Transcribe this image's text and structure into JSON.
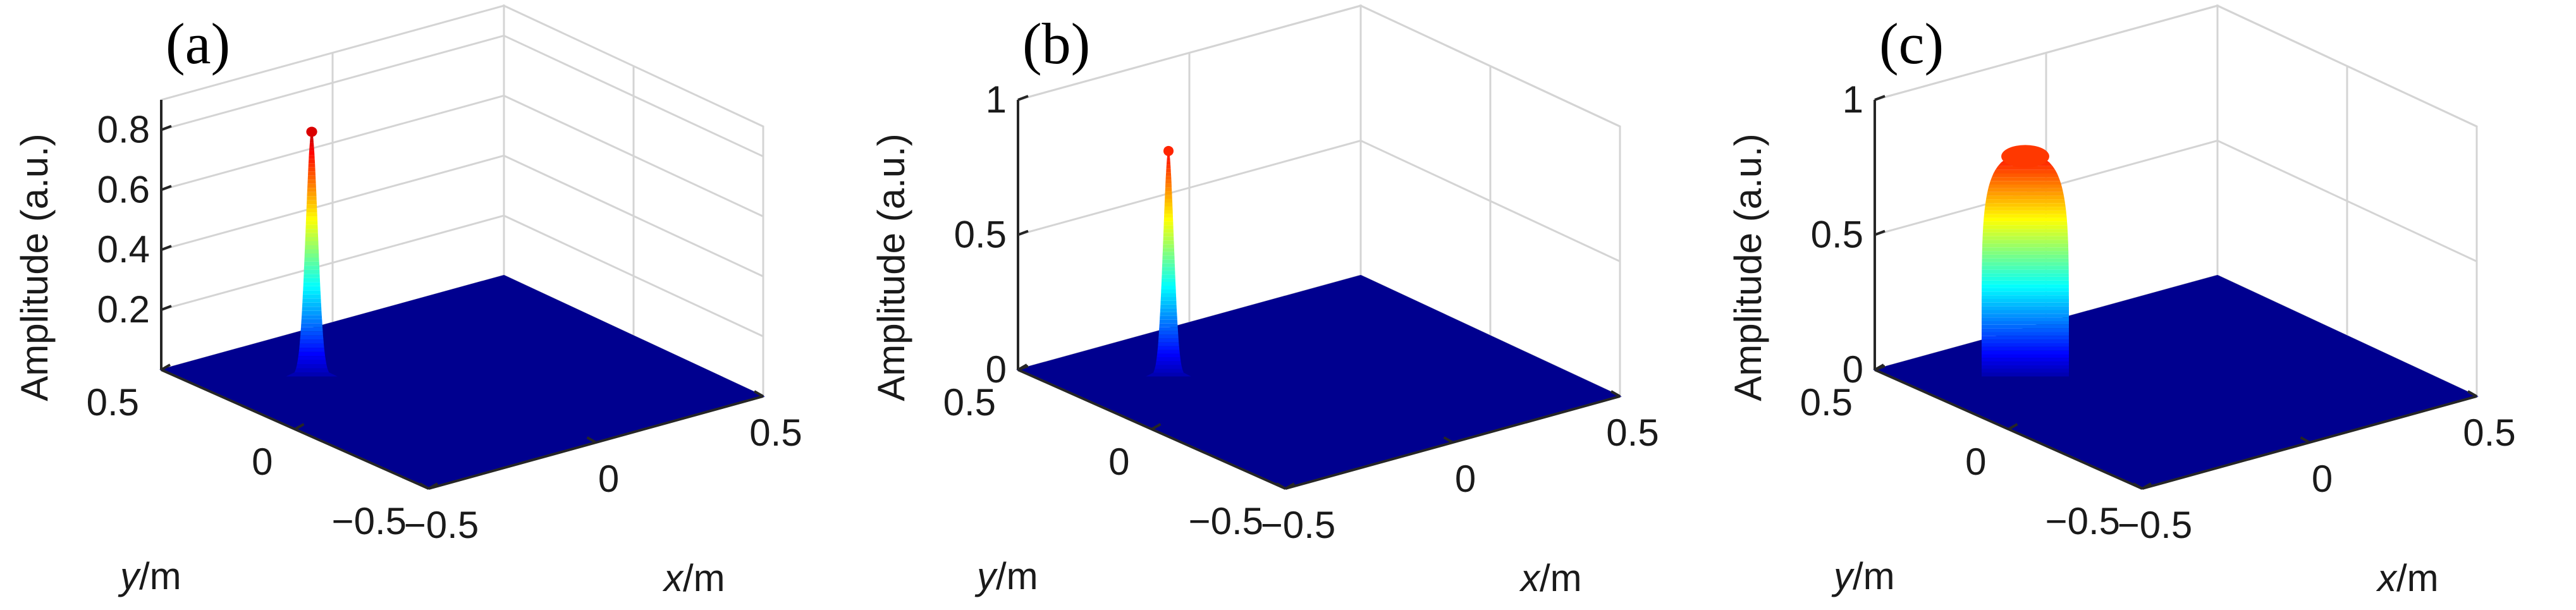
{
  "colors": {
    "floor": "#00008f",
    "colormap": "jet"
  },
  "chart_data": [
    {
      "type": "surface3d",
      "panel_label": "(a)",
      "zlabel": "Amplitude (a.u.)",
      "xlabel_var": "x",
      "xlabel_unit": "/m",
      "ylabel_var": "y",
      "ylabel_unit": "/m",
      "xlim": [
        -0.5,
        0.5
      ],
      "ylim": [
        -0.5,
        0.5
      ],
      "zlim": [
        0,
        0.9
      ],
      "xticks": [
        "−0.5",
        "0",
        "0.5"
      ],
      "yticks": [
        "0.5",
        "0",
        "−0.5"
      ],
      "zticks": [
        "0.2",
        "0.4",
        "0.6",
        "0.8"
      ],
      "peak_amplitude": 0.82,
      "profile": "gaussian",
      "beam_width": 0.025,
      "center": [
        -0.25,
        0.25
      ]
    },
    {
      "type": "surface3d",
      "panel_label": "(b)",
      "zlabel": "Amplitude (a.u.)",
      "xlabel_var": "x",
      "xlabel_unit": "/m",
      "ylabel_var": "y",
      "ylabel_unit": "/m",
      "xlim": [
        -0.5,
        0.5
      ],
      "ylim": [
        -0.5,
        0.5
      ],
      "zlim": [
        0,
        1
      ],
      "xticks": [
        "−0.5",
        "0",
        "0.5"
      ],
      "yticks": [
        "0.5",
        "0",
        "−0.5"
      ],
      "zticks": [
        "0",
        "0.5",
        "1"
      ],
      "peak_amplitude": 0.84,
      "profile": "gaussian",
      "beam_width": 0.022,
      "center": [
        -0.25,
        0.25
      ]
    },
    {
      "type": "surface3d",
      "panel_label": "(c)",
      "zlabel": "Amplitude (a.u.)",
      "xlabel_var": "x",
      "xlabel_unit": "/m",
      "ylabel_var": "y",
      "ylabel_unit": "/m",
      "xlim": [
        -0.5,
        0.5
      ],
      "ylim": [
        -0.5,
        0.5
      ],
      "zlim": [
        0,
        1
      ],
      "xticks": [
        "−0.5",
        "0",
        "0.5"
      ],
      "yticks": [
        "0.5",
        "0",
        "−0.5"
      ],
      "zticks": [
        "0",
        "0.5",
        "1"
      ],
      "peak_amplitude": 0.82,
      "profile": "flat-top",
      "beam_width": 0.06,
      "center": [
        -0.25,
        0.25
      ]
    }
  ]
}
